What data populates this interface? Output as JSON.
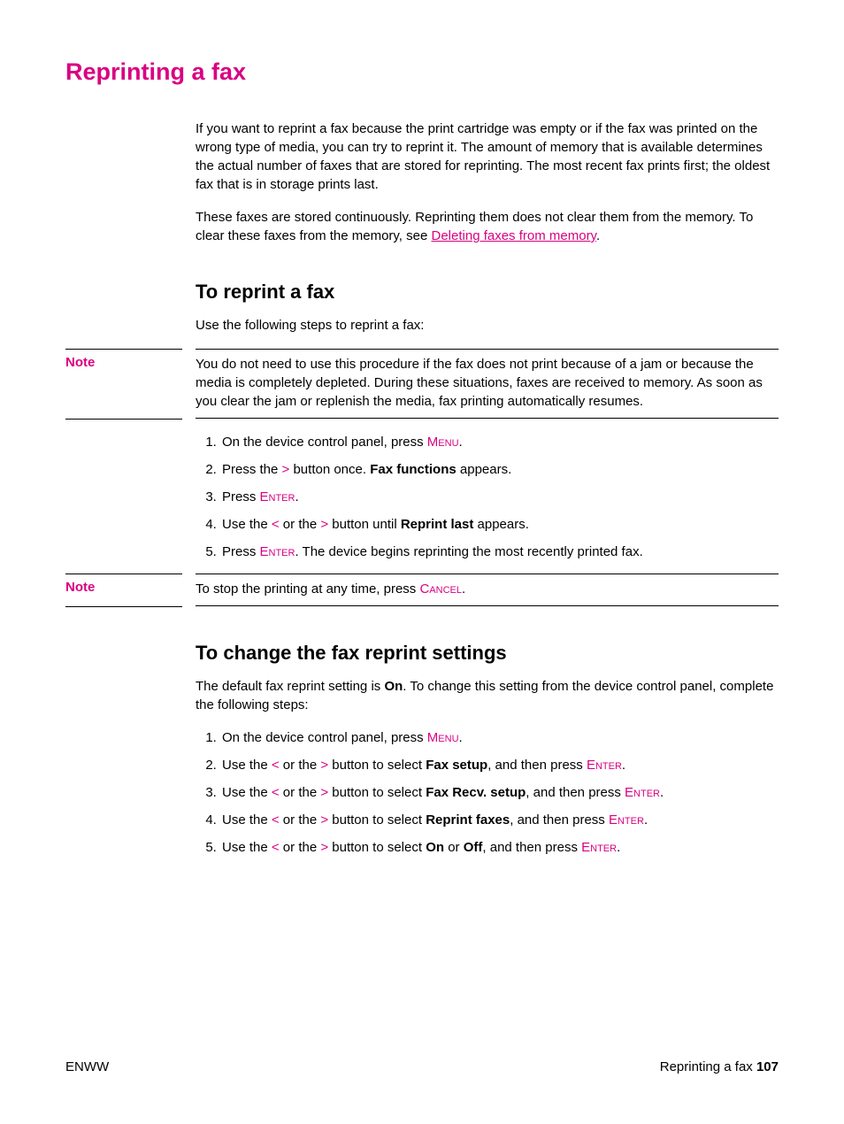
{
  "colors": {
    "magenta": "#d90082",
    "text": "#000000",
    "background": "#ffffff"
  },
  "heading": "Reprinting a fax",
  "intro_p1": "If you want to reprint a fax because the print cartridge was empty or if the fax was printed on the wrong type of media, you can try to reprint it. The amount of memory that is available determines the actual number of faxes that are stored for reprinting. The most recent fax prints first; the oldest fax that is in storage prints last.",
  "intro_p2a": "These faxes are stored continuously. Reprinting them does not clear them from the memory. To clear these faxes from the memory, see ",
  "intro_p2_link": "Deleting faxes from memory",
  "intro_p2b": ".",
  "sec1_heading": "To reprint a fax",
  "sec1_p1": "Use the following steps to reprint a fax:",
  "note_label": "Note",
  "note1_body": "You do not need to use this procedure if the fax does not print because of a jam or because the media is completely depleted. During these situations, faxes are received to memory. As soon as you clear the jam or replenish the media, fax printing automatically resumes.",
  "sec1_steps": {
    "s1a": "On the device control panel, press ",
    "s1_key": "Menu",
    "s1b": ".",
    "s2a": "Press the ",
    "s2_gt": ">",
    "s2b": " button once. ",
    "s2_bold": "Fax functions",
    "s2c": " appears.",
    "s3a": "Press ",
    "s3_key": "Enter",
    "s3b": ".",
    "s4a": "Use the ",
    "s4_lt": "<",
    "s4b": " or the ",
    "s4_gt": ">",
    "s4c": " button until ",
    "s4_bold": "Reprint last",
    "s4d": " appears.",
    "s5a": "Press ",
    "s5_key": "Enter",
    "s5b": ". The device begins reprinting the most recently printed fax."
  },
  "note2_a": "To stop the printing at any time, press ",
  "note2_key": "Cancel",
  "note2_b": ".",
  "sec2_heading": "To change the fax reprint settings",
  "sec2_p1a": "The default fax reprint setting is ",
  "sec2_p1_bold": "On",
  "sec2_p1b": ". To change this setting from the device control panel, complete the following steps:",
  "sec2_steps": {
    "s1a": "On the device control panel, press ",
    "s1_key": "Menu",
    "s1b": ".",
    "s2a": "Use the ",
    "s2_lt": "<",
    "s2b": " or the ",
    "s2_gt": ">",
    "s2c": " button to select ",
    "s2_bold": "Fax setup",
    "s2d": ", and then press ",
    "s2_key": "Enter",
    "s2e": ".",
    "s3a": "Use the ",
    "s3_lt": "<",
    "s3b": " or the ",
    "s3_gt": ">",
    "s3c": " button to select ",
    "s3_bold": "Fax Recv. setup",
    "s3d": ", and then press ",
    "s3_key": "Enter",
    "s3e": ".",
    "s4a": "Use the ",
    "s4_lt": "<",
    "s4b": " or the ",
    "s4_gt": ">",
    "s4c": " button to select ",
    "s4_bold": "Reprint faxes",
    "s4d": ", and then press ",
    "s4_key": "Enter",
    "s4e": ".",
    "s5a": "Use the ",
    "s5_lt": "<",
    "s5b": " or the ",
    "s5_gt": ">",
    "s5c": " button to select ",
    "s5_bold1": "On",
    "s5d": " or ",
    "s5_bold2": "Off",
    "s5e": ", and then press ",
    "s5_key": "Enter",
    "s5f": "."
  },
  "footer": {
    "left": "ENWW",
    "right_text": "Reprinting a fax",
    "right_sep": "   ",
    "page": "107"
  }
}
